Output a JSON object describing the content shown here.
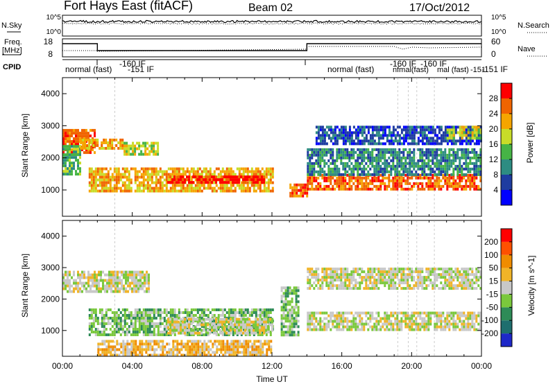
{
  "header": {
    "title": "Fort Hays East (fitACF)",
    "beam": "Beam 02",
    "date": "17/Oct/2012"
  },
  "noise_panel": {
    "left_label": "N.Sky",
    "right_label": "N.Search",
    "left_ticks": [
      "10^5",
      "10^0"
    ],
    "right_ticks": [
      "10^5",
      "10^0"
    ]
  },
  "freq_panel": {
    "left_label_1": "Freq.",
    "left_label_2": "[MHz]",
    "right_label": "Nave",
    "left_ticks": [
      "18",
      "8"
    ],
    "right_ticks": [
      "60",
      "0"
    ]
  },
  "cpid_panel": {
    "label": "CPID",
    "annotations": [
      {
        "text": "normal (fast)"
      },
      {
        "text": "-160 IF"
      },
      {
        "text": "-151  IF"
      },
      {
        "text": "normal (fast)"
      },
      {
        "text": "-160 IF"
      },
      {
        "text": "-160 IF"
      },
      {
        "text": "nfmal(fast)"
      },
      {
        "text": "mal (fast)"
      },
      {
        "text": "-151"
      },
      {
        "text": "-151  IF"
      }
    ]
  },
  "colors": {
    "power": [
      "#0000ff",
      "#1e3ca0",
      "#2d8c82",
      "#46b446",
      "#c8dc28",
      "#f5a500",
      "#f06400",
      "#ff0000"
    ],
    "velocity": [
      "#1e28c8",
      "#1e6e6e",
      "#2e8b57",
      "#7ac83c",
      "#c8c8c8",
      "#f0b428",
      "#f08c00",
      "#ff5000",
      "#ff0000"
    ]
  },
  "chart_data": [
    {
      "type": "heatmap",
      "name": "power-panel",
      "ylabel": "Slant Range [km]",
      "xlabel": "",
      "ylim": [
        180,
        4500
      ],
      "xlim_hours": [
        0,
        24
      ],
      "x_ticks": [
        "00:00",
        "04:00",
        "08:00",
        "12:00",
        "16:00",
        "20:00",
        "00:00"
      ],
      "y_ticks": [
        1000,
        2000,
        3000,
        4000
      ],
      "colorbar": {
        "label": "Power [dB]",
        "ticks": [
          "28",
          "24",
          "20",
          "16",
          "12",
          "8",
          "4"
        ]
      },
      "features": [
        {
          "time_start": 0.0,
          "time_end": 1.8,
          "range_start": 2200,
          "range_end": 2900,
          "level": 6
        },
        {
          "time_start": 0.0,
          "time_end": 1.0,
          "range_start": 1500,
          "range_end": 2400,
          "level": 3
        },
        {
          "time_start": 1.0,
          "time_end": 3.5,
          "range_start": 2300,
          "range_end": 2600,
          "level": 5
        },
        {
          "time_start": 3.5,
          "time_end": 5.5,
          "range_start": 2100,
          "range_end": 2500,
          "level": 4
        },
        {
          "time_start": 1.5,
          "time_end": 12.0,
          "range_start": 1000,
          "range_end": 1700,
          "level": 5
        },
        {
          "time_start": 6.0,
          "time_end": 11.5,
          "range_start": 1200,
          "range_end": 1450,
          "level": 7
        },
        {
          "time_start": 13.0,
          "time_end": 14.0,
          "range_start": 800,
          "range_end": 1200,
          "level": 6
        },
        {
          "time_start": 14.0,
          "time_end": 24.0,
          "range_start": 1000,
          "range_end": 1500,
          "level": 6
        },
        {
          "time_start": 14.0,
          "time_end": 24.0,
          "range_start": 1500,
          "range_end": 2300,
          "level": 2
        },
        {
          "time_start": 14.5,
          "time_end": 24.0,
          "range_start": 2400,
          "range_end": 3000,
          "level": 1
        },
        {
          "time_start": 22.0,
          "time_end": 24.0,
          "range_start": 2600,
          "range_end": 3000,
          "level": 4
        }
      ]
    },
    {
      "type": "heatmap",
      "name": "velocity-panel",
      "ylabel": "Slant Range [km]",
      "xlabel": "Time UT",
      "ylim": [
        180,
        4500
      ],
      "xlim_hours": [
        0,
        24
      ],
      "x_ticks": [
        "00:00",
        "04:00",
        "08:00",
        "12:00",
        "16:00",
        "20:00",
        "00:00"
      ],
      "y_ticks": [
        1000,
        2000,
        3000,
        4000
      ],
      "colorbar": {
        "label": "Velocity [m s^-1]",
        "ticks": [
          "200",
          "100",
          "50",
          "15",
          "-15",
          "-50",
          "-100",
          "-200"
        ]
      },
      "features": [
        {
          "time_start": 0.0,
          "time_end": 5.0,
          "range_start": 2200,
          "range_end": 2900,
          "level": 4
        },
        {
          "time_start": 1.5,
          "time_end": 12.0,
          "range_start": 900,
          "range_end": 1700,
          "level": 3
        },
        {
          "time_start": 6.0,
          "time_end": 12.0,
          "range_start": 900,
          "range_end": 1400,
          "level": 4
        },
        {
          "time_start": 12.5,
          "time_end": 13.5,
          "range_start": 900,
          "range_end": 2400,
          "level": 3
        },
        {
          "time_start": 14.0,
          "time_end": 24.0,
          "range_start": 1000,
          "range_end": 1600,
          "level": 4
        },
        {
          "time_start": 14.0,
          "time_end": 24.0,
          "range_start": 2300,
          "range_end": 3000,
          "level": 4
        },
        {
          "time_start": 2.0,
          "time_end": 12.0,
          "range_start": 200,
          "range_end": 700,
          "level": 5
        }
      ]
    }
  ]
}
